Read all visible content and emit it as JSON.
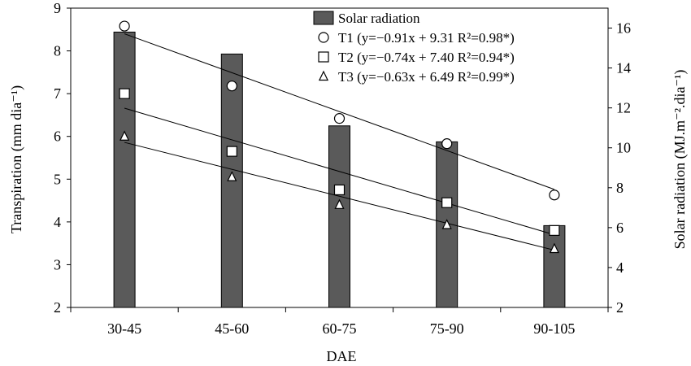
{
  "chart_data": {
    "type": "bar",
    "categories": [
      "30-45",
      "45-60",
      "60-75",
      "75-90",
      "90-105"
    ],
    "xlabel": "DAE",
    "ylabel_left": "Transpiration (mm dia⁻¹)",
    "ylabel_right": "Solar radiation (MJ.m⁻².dia⁻¹)",
    "ylim_left": [
      2,
      9
    ],
    "yticks_left": [
      2,
      3,
      4,
      5,
      6,
      7,
      8,
      9
    ],
    "ylim_right": [
      2,
      17
    ],
    "yticks_right": [
      2,
      4,
      6,
      8,
      10,
      12,
      14,
      16
    ],
    "grid": false,
    "legend_position": "top-right",
    "bar_series": {
      "name": "Solar radiation",
      "axis": "right",
      "values": [
        15.8,
        14.7,
        11.1,
        10.3,
        6.1
      ],
      "color": "#5a5a5a"
    },
    "series": [
      {
        "name": "T1",
        "legend_label": "T1 (y=−0.91x + 9.31 R²=0.98*)",
        "marker": "circle",
        "axis": "left",
        "values": [
          8.58,
          7.18,
          6.42,
          5.83,
          4.63
        ],
        "trend": {
          "slope": -0.91,
          "intercept": 9.31
        }
      },
      {
        "name": "T2",
        "legend_label": "T2 (y=−0.74x + 7.40 R²=0.94*)",
        "marker": "square",
        "axis": "left",
        "values": [
          7.0,
          5.65,
          4.75,
          4.45,
          3.8
        ],
        "trend": {
          "slope": -0.74,
          "intercept": 7.4
        }
      },
      {
        "name": "T3",
        "legend_label": "T3 (y=−0.63x + 6.49 R²=0.99*)",
        "marker": "triangle",
        "axis": "left",
        "values": [
          6.0,
          5.05,
          4.4,
          3.93,
          3.37
        ],
        "trend": {
          "slope": -0.63,
          "intercept": 6.49
        }
      }
    ]
  }
}
